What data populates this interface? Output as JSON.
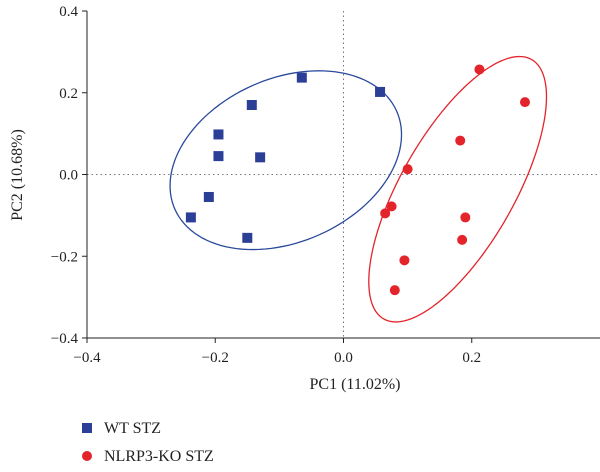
{
  "chart_data": {
    "type": "scatter",
    "xlabel": "PC1 (11.02%)",
    "ylabel": "PC2 (10.68%)",
    "xlim": [
      -0.4,
      0.4
    ],
    "ylim": [
      -0.4,
      0.4
    ],
    "x_ticks": [
      -0.4,
      -0.2,
      0.0,
      0.2
    ],
    "x_tick_labels": [
      "−0.4",
      "−0.2",
      "0.0",
      "0.2"
    ],
    "y_ticks": [
      -0.4,
      -0.2,
      0.0,
      0.2,
      0.4
    ],
    "y_tick_labels": [
      "−0.4",
      "−0.2",
      "0.0",
      "0.2",
      "0.4"
    ],
    "reference_lines": {
      "x": 0,
      "y": 0,
      "style": "dotted"
    },
    "legend_position": "bottom-left",
    "series": [
      {
        "name": "WT STZ",
        "marker": "square",
        "color": "#2b3f97",
        "points": [
          [
            -0.065,
            0.237
          ],
          [
            0.057,
            0.202
          ],
          [
            -0.143,
            0.17
          ],
          [
            -0.195,
            0.098
          ],
          [
            -0.195,
            0.045
          ],
          [
            -0.13,
            0.042
          ],
          [
            -0.21,
            -0.055
          ],
          [
            -0.238,
            -0.105
          ],
          [
            -0.15,
            -0.155
          ]
        ],
        "ellipse": {
          "cx": -0.09,
          "cy": 0.035,
          "rx": 0.163,
          "ry": 0.232,
          "angle_deg": 28,
          "color": "#2b4a9c"
        }
      },
      {
        "name": "NLRP3-KO STZ",
        "marker": "circle",
        "color": "#e3242b",
        "points": [
          [
            0.212,
            0.257
          ],
          [
            0.283,
            0.177
          ],
          [
            0.182,
            0.083
          ],
          [
            0.1,
            0.013
          ],
          [
            0.075,
            -0.078
          ],
          [
            0.065,
            -0.095
          ],
          [
            0.19,
            -0.105
          ],
          [
            0.185,
            -0.16
          ],
          [
            0.095,
            -0.21
          ],
          [
            0.08,
            -0.283
          ]
        ],
        "ellipse": {
          "cx": 0.178,
          "cy": -0.036,
          "rx": 0.095,
          "ry": 0.34,
          "angle_deg": 18,
          "color": "#e3242b"
        }
      }
    ]
  }
}
